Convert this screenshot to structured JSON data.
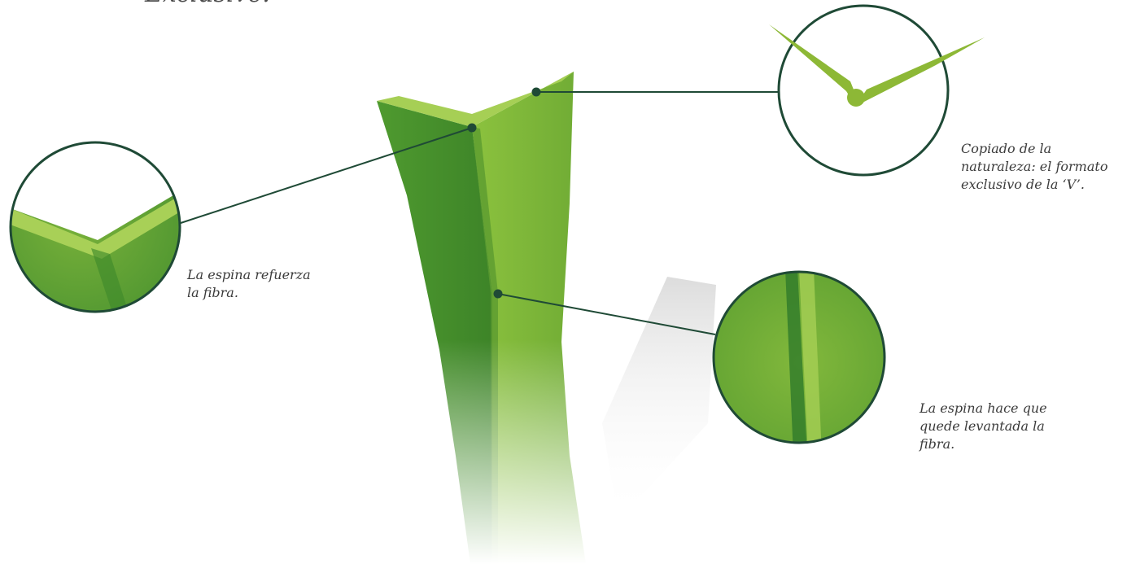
{
  "heading": "Exclusive.",
  "callouts": {
    "spine_reinforces": {
      "lines": [
        "La espina refuerza",
        "la fibra."
      ]
    },
    "v_shape": {
      "lines": [
        "Copiado de la",
        "naturaleza: el formato",
        "exclusivo de la ‘V’."
      ]
    },
    "spine_lifts": {
      "lines": [
        "La espina hace que",
        "quede levantada la",
        "fibra."
      ]
    }
  },
  "colors": {
    "blade_light": "#b6d56a",
    "blade_mid": "#7bb33a",
    "blade_dark": "#3f8a2b",
    "leader_line": "#1f4a36",
    "accent_green": "#8db836"
  }
}
